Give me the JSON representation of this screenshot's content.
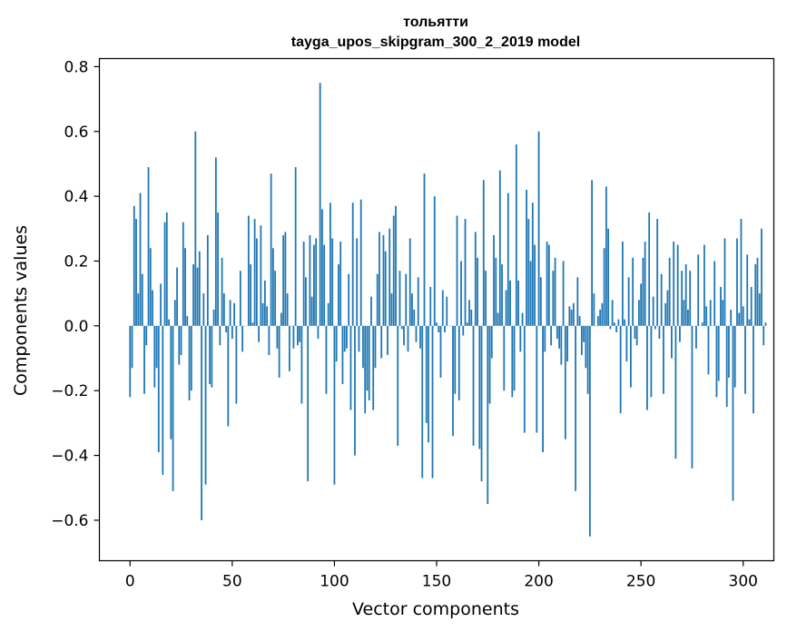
{
  "chart_data": {
    "type": "bar",
    "title_lines": [
      "тольятти",
      "tayga_upos_skipgram_300_2_2019 model"
    ],
    "xlabel": "Vector components",
    "ylabel": "Components values",
    "xlim": [
      -15,
      315
    ],
    "ylim": [
      -0.725,
      0.825
    ],
    "xticks": [
      0,
      50,
      100,
      150,
      200,
      250,
      300
    ],
    "yticks": [
      -0.6,
      -0.4,
      -0.2,
      0.0,
      0.2,
      0.4,
      0.6,
      0.8
    ],
    "ytick_labels": [
      "−0.6",
      "−0.4",
      "−0.2",
      "0.0",
      "0.2",
      "0.4",
      "0.6",
      "0.8"
    ],
    "bar_color": "#1f77b4",
    "grid": false,
    "values": [
      -0.22,
      -0.13,
      0.37,
      0.33,
      0.1,
      0.41,
      0.16,
      -0.21,
      -0.06,
      0.49,
      0.24,
      0.11,
      -0.19,
      -0.13,
      -0.39,
      0.13,
      -0.46,
      0.32,
      0.35,
      0.02,
      -0.35,
      -0.51,
      0.08,
      0.18,
      -0.12,
      -0.09,
      0.32,
      0.24,
      0.03,
      -0.23,
      -0.2,
      0.19,
      0.6,
      0.18,
      0.23,
      -0.6,
      0.1,
      -0.49,
      0.28,
      -0.18,
      -0.19,
      0.05,
      0.52,
      0.35,
      -0.06,
      0.21,
      0.1,
      -0.02,
      -0.31,
      0.08,
      -0.04,
      0.07,
      -0.24,
      0.0,
      0.17,
      -0.08,
      0.0,
      0.0,
      0.34,
      0.19,
      0.01,
      0.33,
      0.27,
      -0.05,
      0.31,
      0.07,
      0.14,
      0.06,
      -0.09,
      0.47,
      0.24,
      0.17,
      -0.07,
      -0.16,
      0.04,
      0.28,
      0.29,
      0.1,
      -0.14,
      0.0,
      -0.07,
      0.49,
      -0.06,
      -0.05,
      -0.24,
      0.26,
      0.15,
      -0.48,
      0.28,
      0.09,
      0.25,
      0.27,
      -0.04,
      0.75,
      0.36,
      0.25,
      -0.21,
      0.07,
      0.38,
      0.27,
      -0.49,
      -0.11,
      0.19,
      0.26,
      -0.18,
      -0.08,
      -0.07,
      0.16,
      -0.26,
      0.38,
      -0.4,
      0.27,
      -0.08,
      0.39,
      -0.13,
      -0.27,
      -0.2,
      -0.23,
      0.09,
      -0.26,
      -0.13,
      0.16,
      0.29,
      -0.1,
      0.28,
      0.23,
      -0.09,
      0.3,
      0.1,
      0.34,
      0.37,
      -0.37,
      0.17,
      -0.01,
      -0.06,
      0.16,
      -0.08,
      0.27,
      0.1,
      0.05,
      -0.05,
      0.15,
      -0.07,
      -0.47,
      0.47,
      -0.3,
      -0.36,
      0.12,
      -0.47,
      0.4,
      0.01,
      -0.02,
      -0.16,
      0.11,
      -0.02,
      0.09,
      0.0,
      0.0,
      -0.34,
      -0.21,
      0.34,
      -0.23,
      0.2,
      -0.03,
      0.33,
      0.01,
      0.08,
      0.05,
      -0.37,
      0.29,
      0.21,
      -0.38,
      -0.48,
      0.45,
      0.17,
      -0.55,
      -0.24,
      -0.1,
      0.28,
      0.21,
      0.04,
      0.48,
      0.19,
      -0.2,
      0.11,
      0.41,
      0.14,
      -0.22,
      -0.2,
      0.56,
      0.14,
      -0.08,
      0.04,
      -0.33,
      0.42,
      0.33,
      0.2,
      0.38,
      0.25,
      -0.33,
      0.6,
      0.15,
      -0.39,
      -0.08,
      0.26,
      0.25,
      -0.06,
      0.17,
      0.21,
      -0.04,
      -0.07,
      -0.12,
      0.2,
      -0.35,
      -0.11,
      0.06,
      0.05,
      0.07,
      -0.51,
      0.15,
      0.03,
      -0.09,
      -0.05,
      -0.13,
      -0.21,
      -0.65,
      0.45,
      0.1,
      0.0,
      0.03,
      0.05,
      0.07,
      0.24,
      0.43,
      0.3,
      -0.01,
      0.08,
      0.01,
      -0.02,
      0.02,
      -0.27,
      0.26,
      0.02,
      -0.11,
      0.15,
      -0.19,
      0.21,
      -0.04,
      -0.06,
      0.08,
      0.13,
      0.21,
      0.26,
      -0.26,
      0.35,
      -0.22,
      0.09,
      -0.01,
      0.33,
      -0.04,
      0.16,
      -0.21,
      0.07,
      0.11,
      0.21,
      -0.1,
      0.26,
      -0.41,
      0.25,
      -0.05,
      0.17,
      0.08,
      0.19,
      0.05,
      0.17,
      -0.44,
      0.0,
      -0.07,
      0.22,
      0.0,
      0.01,
      0.25,
      0.06,
      -0.15,
      0.08,
      0.0,
      0.2,
      -0.22,
      -0.17,
      0.12,
      0.08,
      0.27,
      -0.25,
      -0.16,
      0.05,
      -0.54,
      -0.19,
      0.27,
      0.04,
      0.33,
      0.06,
      -0.21,
      0.22,
      0.02,
      0.12,
      -0.27,
      0.19,
      0.21,
      0.1,
      0.3,
      -0.06,
      0.01
    ]
  }
}
